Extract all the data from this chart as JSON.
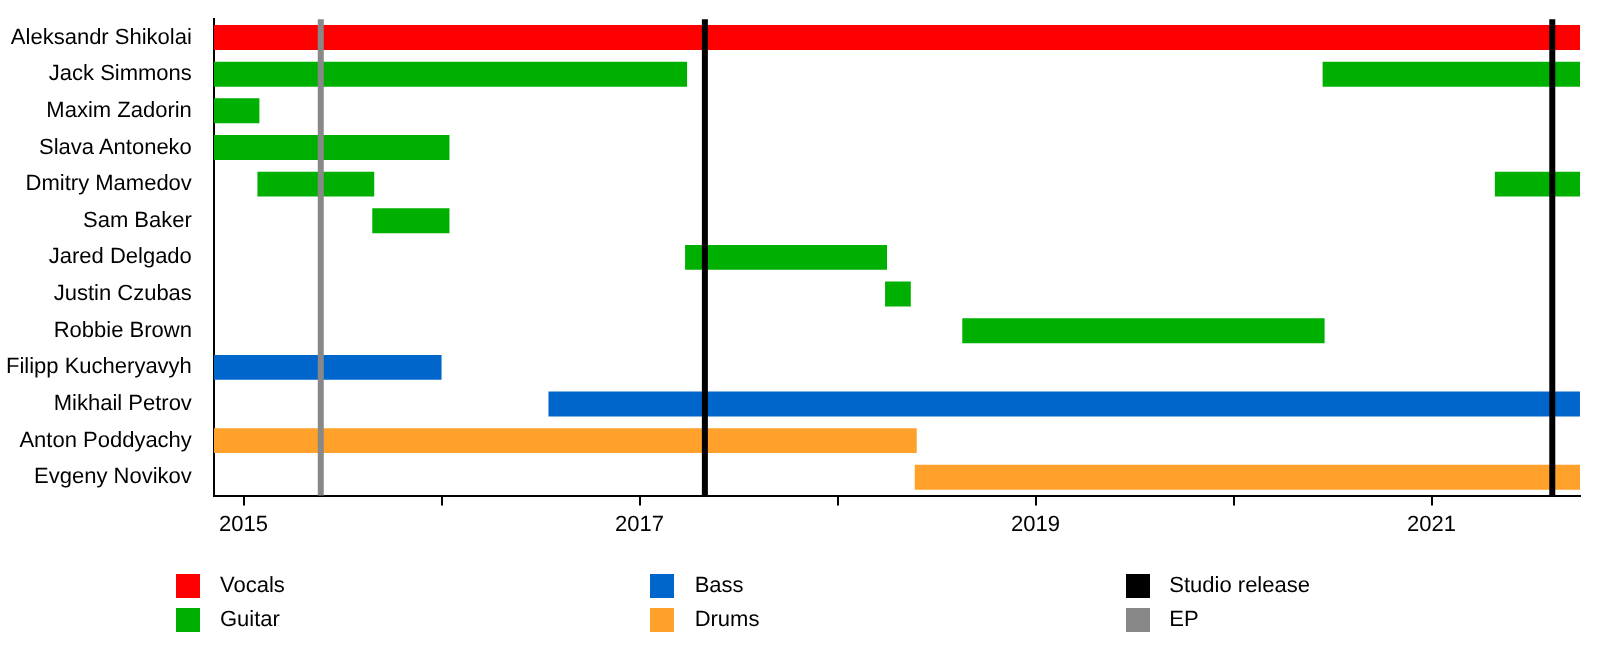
{
  "chart_data": {
    "type": "bar",
    "orientation": "horizontal",
    "categories": [
      "Aleksandr Shikolai",
      "Jack Simmons",
      "Maxim Zadorin",
      "Slava Antoneko",
      "Dmitry Mamedov",
      "Sam Baker",
      "Jared Delgado",
      "Justin Czubas",
      "Robbie Brown",
      "Filipp Kucheryavyh",
      "Mikhail Petrov",
      "Anton Poddyachy",
      "Evgeny Novikov"
    ],
    "series": [
      {
        "name": "Vocals",
        "color": "#ff0000",
        "base": [
          2014.85,
          null,
          null,
          null,
          null,
          null,
          null,
          null,
          null,
          null,
          null,
          null,
          null
        ],
        "values": [
          6.9,
          null,
          null,
          null,
          null,
          null,
          null,
          null,
          null,
          null,
          null,
          null,
          null
        ]
      },
      {
        "name": "Guitar",
        "color": "#00b000",
        "base": [
          null,
          2014.85,
          2014.85,
          2014.85,
          2015.07,
          2015.65,
          2017.23,
          2018.24,
          2018.63,
          null,
          null,
          null,
          null
        ],
        "values": [
          null,
          2.39,
          0.23,
          1.19,
          0.59,
          0.39,
          1.02,
          0.13,
          1.83,
          null,
          null,
          null,
          null
        ]
      },
      {
        "color": "#00b000",
        "base": [
          null,
          2020.45,
          null,
          null,
          2021.32,
          null,
          null,
          null,
          null,
          null,
          null,
          null,
          null
        ],
        "values": [
          null,
          1.3,
          null,
          null,
          0.43,
          null,
          null,
          null,
          null,
          null,
          null,
          null,
          null
        ]
      },
      {
        "name": "Bass",
        "color": "#0066cc",
        "base": [
          null,
          null,
          null,
          null,
          null,
          null,
          null,
          null,
          null,
          2014.85,
          2016.54,
          null,
          null
        ],
        "values": [
          null,
          null,
          null,
          null,
          null,
          null,
          null,
          null,
          null,
          1.15,
          5.21,
          null,
          null
        ]
      },
      {
        "name": "Drums",
        "color": "#ffa12b",
        "base": [
          null,
          null,
          null,
          null,
          null,
          null,
          null,
          null,
          null,
          null,
          null,
          2014.85,
          2018.39
        ],
        "values": [
          null,
          null,
          null,
          null,
          null,
          null,
          null,
          null,
          null,
          null,
          null,
          3.55,
          3.36
        ]
      }
    ],
    "xlim": [
      2014.85,
      2021.75
    ],
    "xticks": [
      2015,
      {
        "value": 2016,
        "label": null
      },
      2017,
      {
        "value": 2018,
        "label": null
      },
      2019,
      {
        "value": 2020,
        "label": null
      },
      2021
    ],
    "ref_lines": [
      {
        "axis": "x",
        "value": 2017.33,
        "label": "Studio release",
        "color": "#000000"
      },
      {
        "axis": "x",
        "value": 2021.61,
        "color": "#000000"
      },
      {
        "axis": "x",
        "value": 2015.39,
        "label": "EP",
        "color": "#888888"
      }
    ],
    "grid": false,
    "legend": "bottom"
  }
}
